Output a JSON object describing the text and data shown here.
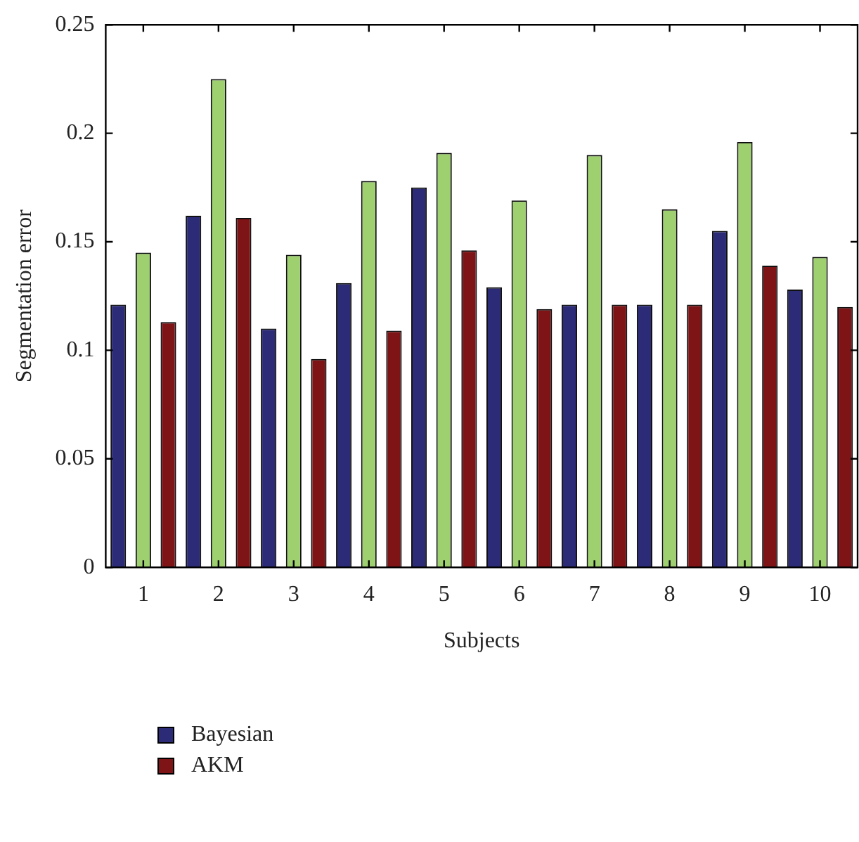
{
  "chart_data": {
    "type": "bar",
    "xlabel": "Subjects",
    "ylabel": "Segmentation error",
    "categories": [
      "1",
      "2",
      "3",
      "4",
      "5",
      "6",
      "7",
      "8",
      "9",
      "10"
    ],
    "series": [
      {
        "name": "Bayesian",
        "color": "#2b2b78",
        "values": [
          0.121,
          0.162,
          0.11,
          0.131,
          0.175,
          0.129,
          0.121,
          0.121,
          0.155,
          0.128
        ]
      },
      {
        "color": "#9ed070",
        "values": [
          0.145,
          0.225,
          0.144,
          0.178,
          0.191,
          0.169,
          0.19,
          0.165,
          0.196,
          0.143
        ]
      },
      {
        "name": "AKM",
        "color": "#7e1416",
        "values": [
          0.113,
          0.161,
          0.096,
          0.109,
          0.146,
          0.119,
          0.121,
          0.121,
          0.139,
          0.12
        ]
      }
    ],
    "ylim": [
      0,
      0.25
    ],
    "yticks": [
      0,
      0.05,
      0.1,
      0.15,
      0.2,
      0.25
    ],
    "grid": false,
    "legend": "bottom"
  }
}
